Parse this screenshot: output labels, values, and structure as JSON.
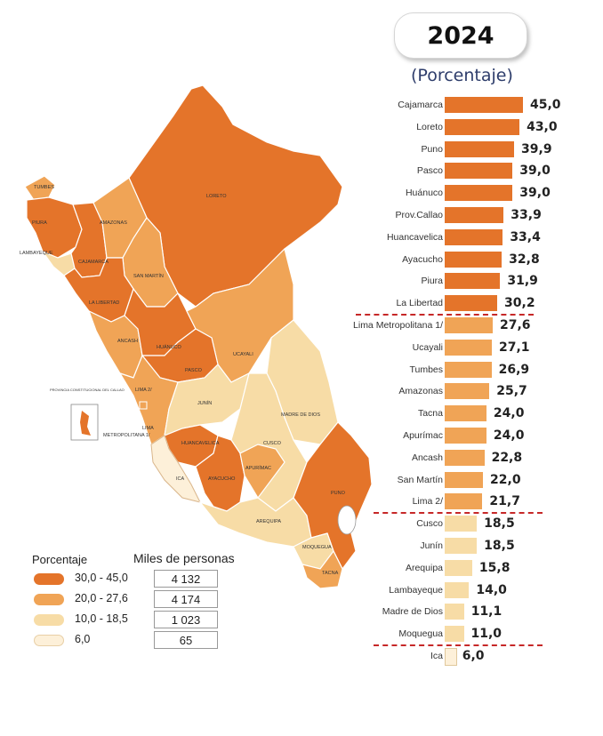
{
  "header": {
    "year": "2024",
    "unit": "(Porcentaje)"
  },
  "colors": {
    "range1": "#e4742a",
    "range2": "#f0a456",
    "range3": "#f7dca6",
    "range4": "#fdf0d9",
    "separator": "#c62828"
  },
  "ranking": [
    {
      "region": "Cajamarca",
      "value": 45.0,
      "label": "45,0",
      "range": 1
    },
    {
      "region": "Loreto",
      "value": 43.0,
      "label": "43,0",
      "range": 1
    },
    {
      "region": "Puno",
      "value": 39.9,
      "label": "39,9",
      "range": 1
    },
    {
      "region": "Pasco",
      "value": 39.0,
      "label": "39,0",
      "range": 1
    },
    {
      "region": "Huánuco",
      "value": 39.0,
      "label": "39,0",
      "range": 1
    },
    {
      "region": "Prov.Callao",
      "value": 33.9,
      "label": "33,9",
      "range": 1
    },
    {
      "region": "Huancavelica",
      "value": 33.4,
      "label": "33,4",
      "range": 1
    },
    {
      "region": "Ayacucho",
      "value": 32.8,
      "label": "32,8",
      "range": 1
    },
    {
      "region": "Piura",
      "value": 31.9,
      "label": "31,9",
      "range": 1
    },
    {
      "region": "La Libertad",
      "value": 30.2,
      "label": "30,2",
      "range": 1
    },
    {
      "region": "Lima Metropolitana 1/",
      "value": 27.6,
      "label": "27,6",
      "range": 2
    },
    {
      "region": "Ucayali",
      "value": 27.1,
      "label": "27,1",
      "range": 2
    },
    {
      "region": "Tumbes",
      "value": 26.9,
      "label": "26,9",
      "range": 2
    },
    {
      "region": "Amazonas",
      "value": 25.7,
      "label": "25,7",
      "range": 2
    },
    {
      "region": "Tacna",
      "value": 24.0,
      "label": "24,0",
      "range": 2
    },
    {
      "region": "Apurímac",
      "value": 24.0,
      "label": "24,0",
      "range": 2
    },
    {
      "region": "Ancash",
      "value": 22.8,
      "label": "22,8",
      "range": 2
    },
    {
      "region": "San Martín",
      "value": 22.0,
      "label": "22,0",
      "range": 2
    },
    {
      "region": "Lima 2/",
      "value": 21.7,
      "label": "21,7",
      "range": 2
    },
    {
      "region": "Cusco",
      "value": 18.5,
      "label": "18,5",
      "range": 3
    },
    {
      "region": "Junín",
      "value": 18.5,
      "label": "18,5",
      "range": 3
    },
    {
      "region": "Arequipa",
      "value": 15.8,
      "label": "15,8",
      "range": 3
    },
    {
      "region": "Lambayeque",
      "value": 14.0,
      "label": "14,0",
      "range": 3
    },
    {
      "region": "Madre de Dios",
      "value": 11.1,
      "label": "11,1",
      "range": 3
    },
    {
      "region": "Moquegua",
      "value": 11.0,
      "label": "11,0",
      "range": 3
    },
    {
      "region": "Ica",
      "value": 6.0,
      "label": "6,0",
      "range": 4
    }
  ],
  "legend": {
    "title": "Porcentaje",
    "people_title": "Miles de personas",
    "items": [
      {
        "range": "30,0 - 45,0",
        "people": "4 132",
        "color": "#e4742a"
      },
      {
        "range": "20,0 - 27,6",
        "people": "4 174",
        "color": "#f0a456"
      },
      {
        "range": "10,0 - 18,5",
        "people": "1 023",
        "color": "#f7dca6"
      },
      {
        "range": "6,0",
        "people": "65",
        "color": "#fdf0d9"
      }
    ]
  },
  "map": {
    "labels": {
      "tumbes": "TUMBES",
      "piura": "PIURA",
      "lambayeque": "LAMBAYEQUE",
      "cajamarca": "CAJAMARCA",
      "amazonas": "AMAZONAS",
      "loreto": "LORETO",
      "san_martin": "SAN MARTÍN",
      "la_libertad": "LA LIBERTAD",
      "ancash": "ANCASH",
      "huanuco": "HUÁNUCO",
      "pasco": "PASCO",
      "ucayali": "UCAYALI",
      "lima": "LIMA 2/",
      "callao": "PROVINCIA CONSTITUCIONAL DEL CALLAO",
      "lima_metro_1": "LIMA",
      "lima_metro_2": "METROPOLITANA 1/",
      "junin": "JUNÍN",
      "madre_de_dios": "MADRE DE DIOS",
      "huancavelica": "HUANCAVELICA",
      "cusco": "CUSCO",
      "ica": "ICA",
      "ayacucho": "AYACUCHO",
      "apurimac": "APURÍMAC",
      "puno": "PUNO",
      "arequipa": "AREQUIPA",
      "moquegua": "MOQUEGUA",
      "tacna": "TACNA"
    }
  }
}
